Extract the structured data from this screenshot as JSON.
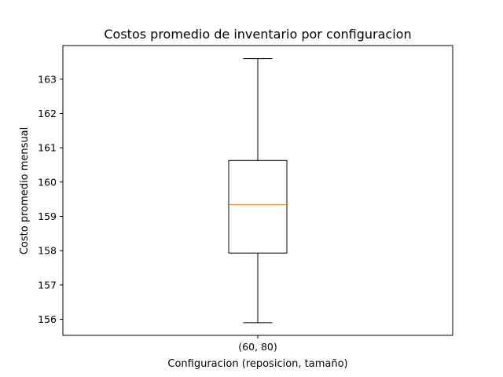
{
  "chart_data": {
    "type": "box",
    "title": "Costos promedio de inventario por configuracion",
    "xlabel": "Configuracion (reposicion, tamaño)",
    "ylabel": "Costo promedio mensual",
    "categories": [
      "(60, 80)"
    ],
    "yticks": [
      156,
      157,
      158,
      159,
      160,
      161,
      162,
      163
    ],
    "ytick_labels": [
      "156",
      "157",
      "158",
      "159",
      "160",
      "161",
      "162",
      "163"
    ],
    "ylim": [
      155.53,
      163.98
    ],
    "grid": false,
    "series": [
      {
        "whisker_low": 155.9,
        "q1": 157.93,
        "median": 159.34,
        "q3": 160.63,
        "whisker_high": 163.6
      }
    ],
    "colors": {
      "box": "#000000",
      "median": "#ff7f0e",
      "axes": "#000000"
    }
  }
}
